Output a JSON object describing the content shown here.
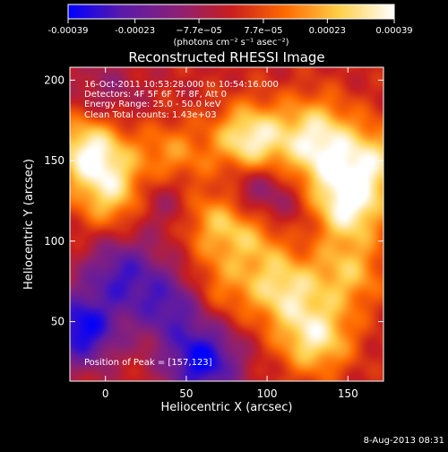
{
  "colorbar": {
    "ticks": [
      "-0.00039",
      "-0.00023",
      "−7.7e−05",
      "7.7e−05",
      "0.00023",
      "0.00039"
    ],
    "tick_values": [
      -0.00039,
      -0.00023,
      -7.7e-05,
      7.7e-05,
      0.00023,
      0.00039
    ],
    "range": [
      -0.00039,
      0.00039
    ],
    "units": "(photons cm⁻² s⁻¹ asec⁻²)",
    "colors": [
      "#0000ff",
      "#5a1aa8",
      "#8a2078",
      "#c81e1e",
      "#ff6a00",
      "#ffd04a",
      "#ffffff"
    ]
  },
  "chart_data": {
    "type": "heatmap",
    "title": "Reconstructed RHESSI Image",
    "xlabel": "Heliocentric X (arcsec)",
    "ylabel": "Heliocentric Y (arcsec)",
    "xlim": [
      -22,
      172
    ],
    "ylim": [
      13,
      208
    ],
    "x_ticks": [
      0,
      50,
      100,
      150
    ],
    "y_ticks": [
      50,
      100,
      150,
      200
    ],
    "annotations": {
      "time": "16-Oct-2011 10:53:28.000 to 10:54:16.000",
      "detectors": "Detectors: 4F 5F 6F 7F 8F, Att 0",
      "energy": "Energy Range: 25.0 - 50.0 keV",
      "clean": "Clean    Total counts: 1.43e+03",
      "peak": "Position of Peak = [157,123]"
    },
    "peak": [
      157,
      123
    ],
    "sources": [
      {
        "x": -10,
        "y": 157,
        "v": 0.95
      },
      {
        "x": 90,
        "y": 162,
        "v": 1.0
      },
      {
        "x": 133,
        "y": 150,
        "v": 0.55
      },
      {
        "x": 150,
        "y": 122,
        "v": 0.95
      },
      {
        "x": 165,
        "y": 150,
        "v": 0.7
      },
      {
        "x": 5,
        "y": 130,
        "v": 0.75
      },
      {
        "x": 70,
        "y": 115,
        "v": 0.65
      },
      {
        "x": 40,
        "y": 150,
        "v": 0.6
      },
      {
        "x": 110,
        "y": 70,
        "v": 0.75
      },
      {
        "x": 130,
        "y": 40,
        "v": 0.85
      },
      {
        "x": 150,
        "y": 80,
        "v": 0.6
      },
      {
        "x": 70,
        "y": 72,
        "v": 0.4
      },
      {
        "x": 95,
        "y": 105,
        "v": 0.6
      },
      {
        "x": 130,
        "y": 170,
        "v": 0.6
      },
      {
        "x": -15,
        "y": 45,
        "v": -1.0
      },
      {
        "x": 60,
        "y": 25,
        "v": -1.0
      },
      {
        "x": 10,
        "y": 80,
        "v": -0.7
      },
      {
        "x": 40,
        "y": 60,
        "v": -0.7
      },
      {
        "x": 35,
        "y": 130,
        "v": -0.5
      },
      {
        "x": 90,
        "y": 130,
        "v": -0.6
      },
      {
        "x": 0,
        "y": 190,
        "v": -0.3
      },
      {
        "x": 110,
        "y": 115,
        "v": -0.3
      }
    ]
  },
  "footer": {
    "timestamp": "8-Aug-2013 08:31"
  }
}
